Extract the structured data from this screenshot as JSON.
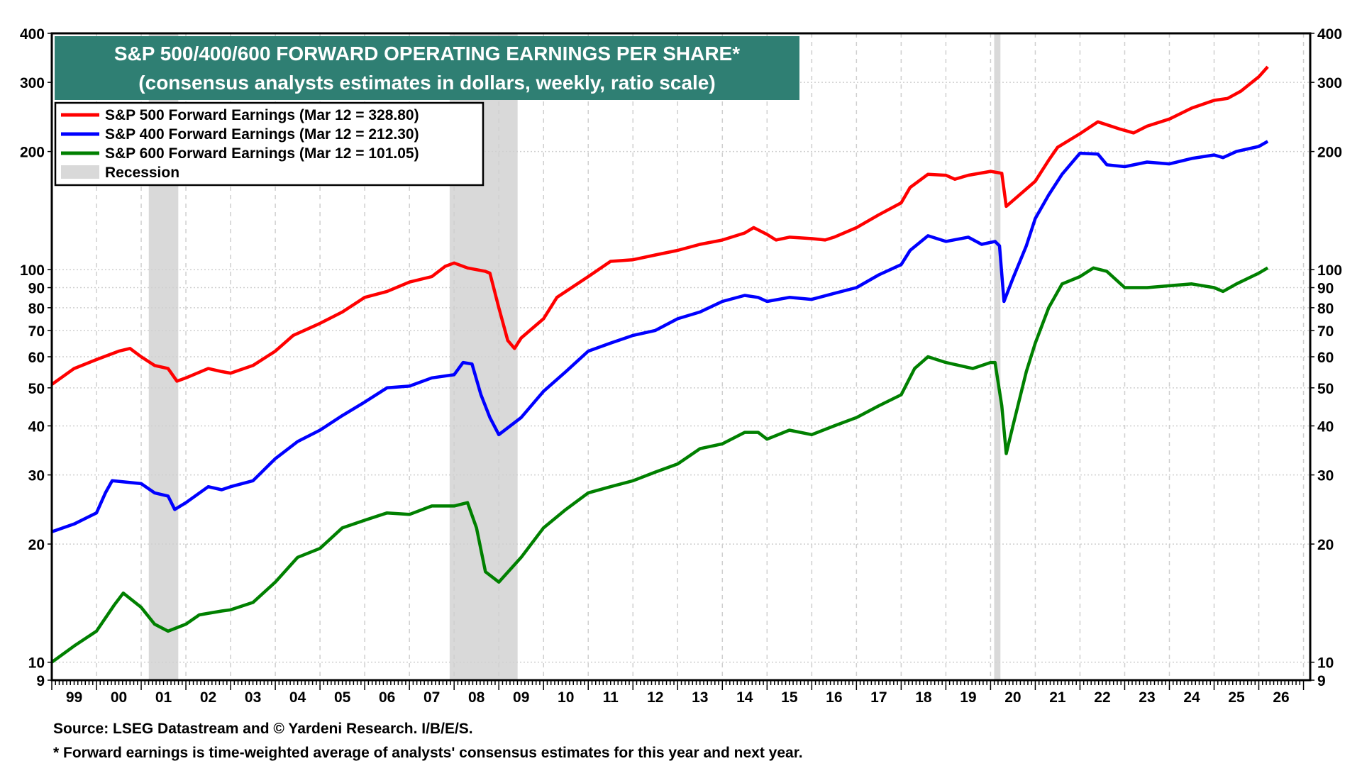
{
  "chart_data": {
    "type": "line",
    "title": "S&P 500/400/600 FORWARD OPERATING EARNINGS PER SHARE*",
    "subtitle": "(consensus analysts estimates in dollars, weekly, ratio scale)",
    "yscale": "log",
    "ylim": [
      9,
      400
    ],
    "xlim": [
      1999.0,
      2027.15
    ],
    "yticks": [
      9,
      10,
      20,
      30,
      40,
      50,
      60,
      70,
      80,
      90,
      100,
      200,
      300,
      400
    ],
    "ytick_labels": [
      "9",
      "10",
      "20",
      "30",
      "40",
      "50",
      "60",
      "70",
      "80",
      "90",
      "100",
      "200",
      "300",
      "400"
    ],
    "xtick_labels": [
      "99",
      "00",
      "01",
      "02",
      "03",
      "04",
      "05",
      "06",
      "07",
      "08",
      "09",
      "10",
      "11",
      "12",
      "13",
      "14",
      "15",
      "16",
      "17",
      "18",
      "19",
      "20",
      "21",
      "22",
      "23",
      "24",
      "25",
      "26"
    ],
    "grid": true,
    "legend_position": "top-left",
    "legend_recession": "Recession",
    "recessions": [
      [
        2001.17,
        2001.83
      ],
      [
        2007.9,
        2009.42
      ],
      [
        2020.08,
        2020.22
      ]
    ],
    "series": [
      {
        "name": "S&P 500 Forward Earnings (Mar 12 = 328.80)",
        "color": "#ff0000",
        "points": [
          [
            1999.0,
            51
          ],
          [
            1999.5,
            56
          ],
          [
            2000.0,
            59
          ],
          [
            2000.5,
            62
          ],
          [
            2000.75,
            63
          ],
          [
            2001.0,
            60
          ],
          [
            2001.3,
            57
          ],
          [
            2001.6,
            56
          ],
          [
            2001.8,
            52
          ],
          [
            2002.0,
            53
          ],
          [
            2002.5,
            56
          ],
          [
            2002.8,
            55
          ],
          [
            2003.0,
            54.5
          ],
          [
            2003.5,
            57
          ],
          [
            2004.0,
            62
          ],
          [
            2004.4,
            68
          ],
          [
            2005.0,
            73
          ],
          [
            2005.5,
            78
          ],
          [
            2006.0,
            85
          ],
          [
            2006.5,
            88
          ],
          [
            2007.0,
            93
          ],
          [
            2007.5,
            96
          ],
          [
            2007.8,
            102
          ],
          [
            2008.0,
            104
          ],
          [
            2008.3,
            101
          ],
          [
            2008.7,
            99
          ],
          [
            2008.8,
            98
          ],
          [
            2009.0,
            80
          ],
          [
            2009.2,
            66
          ],
          [
            2009.35,
            63
          ],
          [
            2009.5,
            67
          ],
          [
            2010.0,
            75
          ],
          [
            2010.3,
            85
          ],
          [
            2011.0,
            96
          ],
          [
            2011.5,
            105
          ],
          [
            2012.0,
            106
          ],
          [
            2012.5,
            109
          ],
          [
            2013.0,
            112
          ],
          [
            2013.5,
            116
          ],
          [
            2014.0,
            119
          ],
          [
            2014.5,
            124
          ],
          [
            2014.7,
            128
          ],
          [
            2015.0,
            123
          ],
          [
            2015.2,
            119
          ],
          [
            2015.5,
            121
          ],
          [
            2016.0,
            120
          ],
          [
            2016.3,
            119
          ],
          [
            2016.5,
            121
          ],
          [
            2017.0,
            128
          ],
          [
            2017.5,
            138
          ],
          [
            2018.0,
            148
          ],
          [
            2018.2,
            162
          ],
          [
            2018.6,
            175
          ],
          [
            2019.0,
            174
          ],
          [
            2019.2,
            170
          ],
          [
            2019.5,
            174
          ],
          [
            2020.0,
            178
          ],
          [
            2020.25,
            176
          ],
          [
            2020.35,
            145
          ],
          [
            2020.5,
            150
          ],
          [
            2021.0,
            168
          ],
          [
            2021.3,
            190
          ],
          [
            2021.5,
            205
          ],
          [
            2022.0,
            222
          ],
          [
            2022.4,
            238
          ],
          [
            2022.9,
            228
          ],
          [
            2023.2,
            223
          ],
          [
            2023.5,
            232
          ],
          [
            2024.0,
            242
          ],
          [
            2024.5,
            258
          ],
          [
            2025.0,
            270
          ],
          [
            2025.3,
            273
          ],
          [
            2025.6,
            285
          ],
          [
            2026.0,
            310
          ],
          [
            2026.2,
            328.8
          ]
        ]
      },
      {
        "name": "S&P 400 Forward Earnings (Mar 12 = 212.30)",
        "color": "#0000ff",
        "points": [
          [
            1999.0,
            21.5
          ],
          [
            1999.5,
            22.5
          ],
          [
            2000.0,
            24
          ],
          [
            2000.2,
            27
          ],
          [
            2000.35,
            29
          ],
          [
            2001.0,
            28.5
          ],
          [
            2001.3,
            27
          ],
          [
            2001.6,
            26.5
          ],
          [
            2001.75,
            24.5
          ],
          [
            2002.0,
            25.5
          ],
          [
            2002.5,
            28
          ],
          [
            2002.8,
            27.5
          ],
          [
            2003.0,
            28
          ],
          [
            2003.5,
            29
          ],
          [
            2004.0,
            33
          ],
          [
            2004.5,
            36.5
          ],
          [
            2005.0,
            39
          ],
          [
            2005.5,
            42.5
          ],
          [
            2006.0,
            46
          ],
          [
            2006.5,
            50
          ],
          [
            2007.0,
            50.5
          ],
          [
            2007.5,
            53
          ],
          [
            2008.0,
            54
          ],
          [
            2008.2,
            58
          ],
          [
            2008.4,
            57.5
          ],
          [
            2008.6,
            48
          ],
          [
            2008.8,
            42
          ],
          [
            2009.0,
            38
          ],
          [
            2009.5,
            42
          ],
          [
            2010.0,
            49
          ],
          [
            2010.5,
            55
          ],
          [
            2011.0,
            62
          ],
          [
            2011.5,
            65
          ],
          [
            2012.0,
            68
          ],
          [
            2012.5,
            70
          ],
          [
            2013.0,
            75
          ],
          [
            2013.5,
            78
          ],
          [
            2014.0,
            83
          ],
          [
            2014.5,
            86
          ],
          [
            2014.8,
            85
          ],
          [
            2015.0,
            83
          ],
          [
            2015.5,
            85
          ],
          [
            2016.0,
            84
          ],
          [
            2016.5,
            87
          ],
          [
            2017.0,
            90
          ],
          [
            2017.5,
            97
          ],
          [
            2018.0,
            103
          ],
          [
            2018.2,
            112
          ],
          [
            2018.6,
            122
          ],
          [
            2019.0,
            118
          ],
          [
            2019.5,
            121
          ],
          [
            2019.8,
            116
          ],
          [
            2020.1,
            118
          ],
          [
            2020.2,
            115
          ],
          [
            2020.3,
            83
          ],
          [
            2020.5,
            95
          ],
          [
            2020.8,
            115
          ],
          [
            2021.0,
            135
          ],
          [
            2021.3,
            155
          ],
          [
            2021.6,
            175
          ],
          [
            2022.0,
            198
          ],
          [
            2022.4,
            197
          ],
          [
            2022.6,
            185
          ],
          [
            2023.0,
            183
          ],
          [
            2023.5,
            188
          ],
          [
            2024.0,
            186
          ],
          [
            2024.5,
            192
          ],
          [
            2025.0,
            196
          ],
          [
            2025.2,
            193
          ],
          [
            2025.5,
            200
          ],
          [
            2026.0,
            206
          ],
          [
            2026.2,
            212.3
          ]
        ]
      },
      {
        "name": "S&P 600 Forward Earnings (Mar 12 = 101.05)",
        "color": "#008000",
        "points": [
          [
            1999.0,
            10
          ],
          [
            1999.5,
            11
          ],
          [
            2000.0,
            12
          ],
          [
            2000.4,
            14
          ],
          [
            2000.6,
            15
          ],
          [
            2001.0,
            13.8
          ],
          [
            2001.3,
            12.5
          ],
          [
            2001.6,
            12
          ],
          [
            2002.0,
            12.5
          ],
          [
            2002.3,
            13.2
          ],
          [
            2002.8,
            13.5
          ],
          [
            2003.0,
            13.6
          ],
          [
            2003.5,
            14.2
          ],
          [
            2004.0,
            16
          ],
          [
            2004.5,
            18.5
          ],
          [
            2005.0,
            19.5
          ],
          [
            2005.5,
            22
          ],
          [
            2006.0,
            23
          ],
          [
            2006.5,
            24
          ],
          [
            2007.0,
            23.8
          ],
          [
            2007.5,
            25
          ],
          [
            2008.0,
            25
          ],
          [
            2008.3,
            25.5
          ],
          [
            2008.5,
            22
          ],
          [
            2008.7,
            17
          ],
          [
            2009.0,
            16
          ],
          [
            2009.5,
            18.5
          ],
          [
            2010.0,
            22
          ],
          [
            2010.5,
            24.5
          ],
          [
            2011.0,
            27
          ],
          [
            2011.5,
            28
          ],
          [
            2012.0,
            29
          ],
          [
            2012.5,
            30.5
          ],
          [
            2013.0,
            32
          ],
          [
            2013.5,
            35
          ],
          [
            2014.0,
            36
          ],
          [
            2014.5,
            38.5
          ],
          [
            2014.8,
            38.5
          ],
          [
            2015.0,
            37
          ],
          [
            2015.5,
            39
          ],
          [
            2016.0,
            38
          ],
          [
            2016.5,
            40
          ],
          [
            2017.0,
            42
          ],
          [
            2017.5,
            45
          ],
          [
            2018.0,
            48
          ],
          [
            2018.3,
            56
          ],
          [
            2018.6,
            60
          ],
          [
            2019.0,
            58
          ],
          [
            2019.3,
            57
          ],
          [
            2019.6,
            56
          ],
          [
            2020.0,
            58
          ],
          [
            2020.1,
            58
          ],
          [
            2020.25,
            45
          ],
          [
            2020.35,
            34
          ],
          [
            2020.5,
            40
          ],
          [
            2020.8,
            55
          ],
          [
            2021.0,
            65
          ],
          [
            2021.3,
            80
          ],
          [
            2021.6,
            92
          ],
          [
            2022.0,
            96
          ],
          [
            2022.3,
            101
          ],
          [
            2022.6,
            99
          ],
          [
            2023.0,
            90
          ],
          [
            2023.5,
            90
          ],
          [
            2024.0,
            91
          ],
          [
            2024.5,
            92
          ],
          [
            2025.0,
            90
          ],
          [
            2025.2,
            88
          ],
          [
            2025.5,
            92
          ],
          [
            2026.0,
            98
          ],
          [
            2026.2,
            101.05
          ]
        ]
      }
    ],
    "colors": {
      "title_bg": "#2f7f73",
      "recession": "#d9d9d9"
    }
  },
  "footer": {
    "source": "Source: LSEG Datastream and © Yardeni Research. I/B/E/S.",
    "note": "* Forward earnings is time-weighted average of analysts' consensus estimates for this year and next year."
  }
}
